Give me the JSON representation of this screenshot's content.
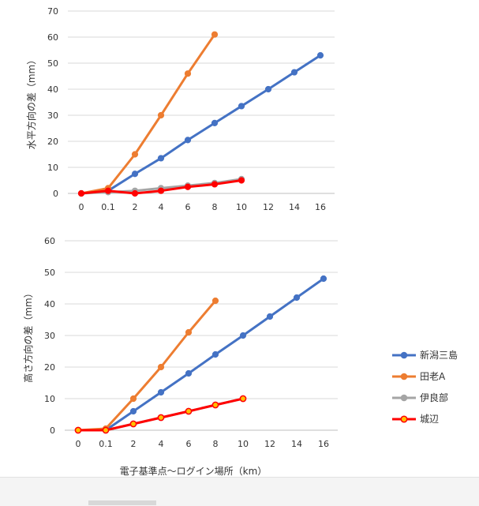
{
  "chart_data": [
    {
      "type": "line",
      "ylabel": "水平方向の差（mm）",
      "xlabel": "",
      "categories": [
        "0",
        "0.1",
        "2",
        "4",
        "6",
        "8",
        "10",
        "12",
        "14",
        "16"
      ],
      "ylim": [
        0,
        70
      ],
      "yticks": [
        0,
        10,
        20,
        30,
        40,
        50,
        60,
        70
      ],
      "grid": true,
      "series": [
        {
          "name": "新潟三島",
          "color": "#4472c4",
          "values": [
            0,
            1,
            7.5,
            13.5,
            20.5,
            27,
            33.5,
            40,
            46.5,
            53
          ]
        },
        {
          "name": "田老A",
          "color": "#ed7d31",
          "values": [
            0,
            2,
            15,
            30,
            46,
            61,
            null,
            null,
            null,
            null
          ]
        },
        {
          "name": "伊良部",
          "color": "#a5a5a5",
          "values": [
            0,
            0.5,
            1,
            2,
            3,
            4,
            5.5,
            null,
            null,
            null
          ]
        },
        {
          "name": "城辺",
          "color": "#ff0000",
          "values": [
            0,
            1,
            0,
            1,
            2.5,
            3.5,
            5,
            null,
            null,
            null
          ]
        }
      ]
    },
    {
      "type": "line",
      "ylabel": "高さ方向の差（mm）",
      "xlabel": "電子基準点～ログイン場所（km）",
      "categories": [
        "0",
        "0.1",
        "2",
        "4",
        "6",
        "8",
        "10",
        "12",
        "14",
        "16"
      ],
      "ylim": [
        0,
        60
      ],
      "yticks": [
        0,
        10,
        20,
        30,
        40,
        50,
        60
      ],
      "grid": true,
      "series": [
        {
          "name": "新潟三島",
          "color": "#4472c4",
          "values": [
            0,
            0,
            6,
            12,
            18,
            24,
            30,
            36,
            42,
            48
          ]
        },
        {
          "name": "田老A",
          "color": "#ed7d31",
          "values": [
            0,
            0.5,
            10,
            20,
            31,
            41,
            null,
            null,
            null,
            null
          ]
        },
        {
          "name": "伊良部",
          "color": "#a5a5a5",
          "values": [
            0,
            0,
            2,
            4,
            6,
            8,
            10,
            null,
            null,
            null
          ]
        },
        {
          "name": "城辺",
          "color": "#ff0000",
          "values": [
            0,
            0,
            2,
            4,
            6,
            8,
            10,
            null,
            null,
            null
          ]
        }
      ]
    }
  ],
  "legend": {
    "placement": "right",
    "items": [
      {
        "label": "新潟三島",
        "color": "#4472c4"
      },
      {
        "label": "田老A",
        "color": "#ed7d31"
      },
      {
        "label": "伊良部",
        "color": "#a5a5a5"
      },
      {
        "label": "城辺",
        "color": "#ff0000"
      }
    ]
  }
}
